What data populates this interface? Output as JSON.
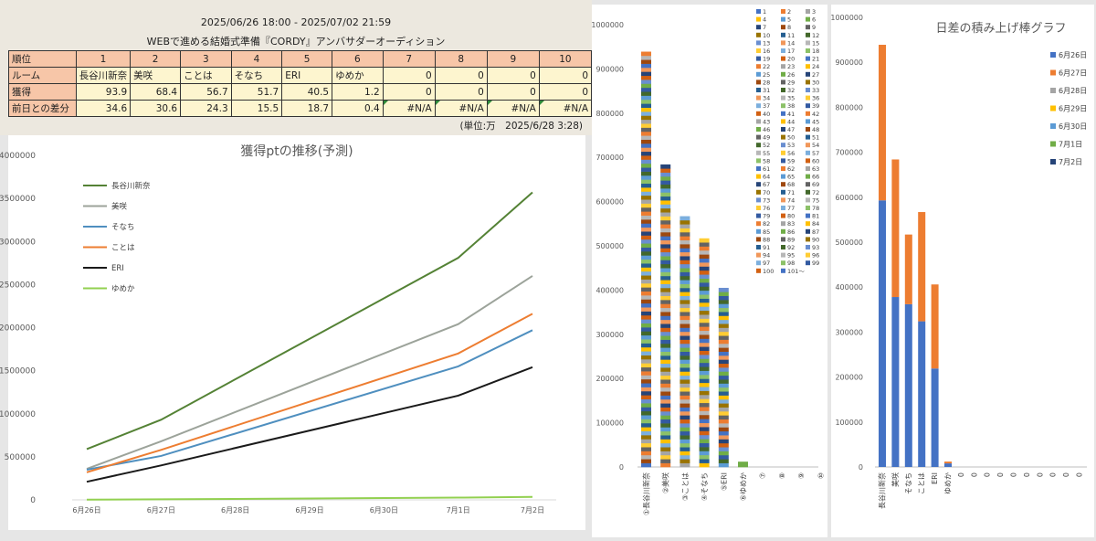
{
  "header": {
    "period": "2025/06/26 18:00 - 2025/07/02 21:59",
    "event_title": "WEBで進める結婚式準備『CORDY』アンバサダーオーディション"
  },
  "ranking_table": {
    "row_labels": [
      "順位",
      "ルーム",
      "獲得",
      "前日との差分"
    ],
    "ranks": [
      "1",
      "2",
      "3",
      "4",
      "5",
      "6",
      "7",
      "8",
      "9",
      "10"
    ],
    "rooms": [
      "長谷川新奈",
      "美咲",
      "ことは",
      "そなち",
      "ERI",
      "ゆめか",
      "0",
      "0",
      "0",
      "0"
    ],
    "points": [
      "93.9",
      "68.4",
      "56.7",
      "51.7",
      "40.5",
      "1.2",
      "0",
      "0",
      "0",
      "0"
    ],
    "diffs": [
      "34.6",
      "30.6",
      "24.3",
      "15.5",
      "18.7",
      "0.4",
      "#N/A",
      "#N/A",
      "#N/A",
      "#N/A"
    ],
    "note": "(単位:万　2025/6/28 3:28)"
  },
  "chart_data": [
    {
      "type": "line",
      "title": "獲得ptの推移(予測)",
      "categories": [
        "6月26日",
        "6月27日",
        "6月28日",
        "6月29日",
        "6月30日",
        "7月1日",
        "7月2日"
      ],
      "ylim": [
        0,
        4000000
      ],
      "yticks": [
        "0",
        "500000",
        "1000000",
        "1500000",
        "2000000",
        "2500000",
        "3000000",
        "3500000",
        "4000000"
      ],
      "legend_position": "top-left",
      "grid": false,
      "series": [
        {
          "name": "長谷川新奈",
          "color": "#548235",
          "points": [
            [
              0,
              590000
            ],
            [
              1,
              930000
            ],
            [
              5,
              2810000
            ],
            [
              6,
              3570000
            ]
          ]
        },
        {
          "name": "美咲",
          "color": "#9ca39a",
          "points": [
            [
              0,
              360000
            ],
            [
              1,
              680000
            ],
            [
              5,
              2040000
            ],
            [
              6,
              2600000
            ]
          ]
        },
        {
          "name": "そなち",
          "color": "#4f8fbf",
          "points": [
            [
              0,
              350000
            ],
            [
              1,
              510000
            ],
            [
              5,
              1550000
            ],
            [
              6,
              1970000
            ]
          ]
        },
        {
          "name": "ことは",
          "color": "#ed7d31",
          "points": [
            [
              0,
              320000
            ],
            [
              1,
              580000
            ],
            [
              5,
              1700000
            ],
            [
              6,
              2160000
            ]
          ]
        },
        {
          "name": "ERI",
          "color": "#1a1a1a",
          "points": [
            [
              0,
              210000
            ],
            [
              1,
              400000
            ],
            [
              5,
              1210000
            ],
            [
              6,
              1540000
            ]
          ]
        },
        {
          "name": "ゆめか",
          "color": "#92d050",
          "points": [
            [
              0,
              2000
            ],
            [
              1,
              6000
            ],
            [
              5,
              26000
            ],
            [
              6,
              34000
            ]
          ]
        }
      ]
    },
    {
      "type": "bar",
      "stacked": true,
      "categories": [
        "①長谷川新奈",
        "②美咲",
        "③ことは",
        "④そなち",
        "⑤ERI",
        "⑥ゆめか",
        "⑦",
        "⑧",
        "⑨",
        "⑩"
      ],
      "ylim": [
        0,
        1000000
      ],
      "yticks": [
        "0",
        "100000",
        "200000",
        "300000",
        "400000",
        "500000",
        "600000",
        "700000",
        "800000",
        "900000",
        "1000000"
      ],
      "totals": [
        939000,
        684000,
        567000,
        517000,
        405000,
        12000,
        0,
        0,
        0,
        0
      ],
      "legend_position": "right",
      "legend": [
        "1",
        "2",
        "3",
        "4",
        "5",
        "6",
        "7",
        "8",
        "9",
        "10",
        "11",
        "12",
        "13",
        "14",
        "15",
        "16",
        "17",
        "18",
        "19",
        "20",
        "21",
        "22",
        "23",
        "24",
        "25",
        "26",
        "27",
        "28",
        "29",
        "30",
        "31",
        "32",
        "33",
        "34",
        "35",
        "36",
        "37",
        "38",
        "39",
        "40",
        "41",
        "42",
        "43",
        "44",
        "45",
        "46",
        "47",
        "48",
        "49",
        "50",
        "51",
        "52",
        "53",
        "54",
        "55",
        "56",
        "57",
        "58",
        "59",
        "60",
        "61",
        "62",
        "63",
        "64",
        "65",
        "66",
        "67",
        "68",
        "69",
        "70",
        "71",
        "72",
        "73",
        "74",
        "75",
        "76",
        "77",
        "78",
        "79",
        "80",
        "81",
        "82",
        "83",
        "84",
        "85",
        "86",
        "87",
        "88",
        "89",
        "90",
        "91",
        "92",
        "93",
        "94",
        "95",
        "96",
        "97",
        "98",
        "99",
        "100",
        "101～"
      ]
    },
    {
      "type": "bar",
      "stacked": true,
      "title": "日差の積み上げ棒グラフ",
      "categories": [
        "長谷川新奈",
        "美咲",
        "そなち",
        "ことは",
        "ERI",
        "ゆめか",
        "0",
        "0",
        "0",
        "0",
        "0",
        "0",
        "0",
        "0",
        "0",
        "0"
      ],
      "ylim": [
        0,
        1000000
      ],
      "yticks": [
        "0",
        "100000",
        "200000",
        "300000",
        "400000",
        "500000",
        "600000",
        "700000",
        "800000",
        "900000",
        "1000000"
      ],
      "legend_position": "right",
      "series": [
        {
          "name": "6月26日",
          "color": "#4472c4",
          "values": [
            593000,
            378000,
            362000,
            324000,
            219000,
            8000,
            0,
            0,
            0,
            0,
            0,
            0,
            0,
            0,
            0,
            0
          ]
        },
        {
          "name": "6月27日",
          "color": "#ed7d31",
          "values": [
            346000,
            306000,
            155000,
            243000,
            187000,
            4000,
            0,
            0,
            0,
            0,
            0,
            0,
            0,
            0,
            0,
            0
          ]
        },
        {
          "name": "6月28日",
          "color": "#a5a5a5",
          "values": [
            0,
            0,
            0,
            0,
            0,
            0,
            0,
            0,
            0,
            0,
            0,
            0,
            0,
            0,
            0,
            0
          ]
        },
        {
          "name": "6月29日",
          "color": "#ffc000",
          "values": [
            0,
            0,
            0,
            0,
            0,
            0,
            0,
            0,
            0,
            0,
            0,
            0,
            0,
            0,
            0,
            0
          ]
        },
        {
          "name": "6月30日",
          "color": "#5b9bd5",
          "values": [
            0,
            0,
            0,
            0,
            0,
            0,
            0,
            0,
            0,
            0,
            0,
            0,
            0,
            0,
            0,
            0
          ]
        },
        {
          "name": "7月1日",
          "color": "#70ad47",
          "values": [
            0,
            0,
            0,
            0,
            0,
            0,
            0,
            0,
            0,
            0,
            0,
            0,
            0,
            0,
            0,
            0
          ]
        },
        {
          "name": "7月2日",
          "color": "#264478",
          "values": [
            0,
            0,
            0,
            0,
            0,
            0,
            0,
            0,
            0,
            0,
            0,
            0,
            0,
            0,
            0,
            0
          ]
        }
      ]
    }
  ]
}
